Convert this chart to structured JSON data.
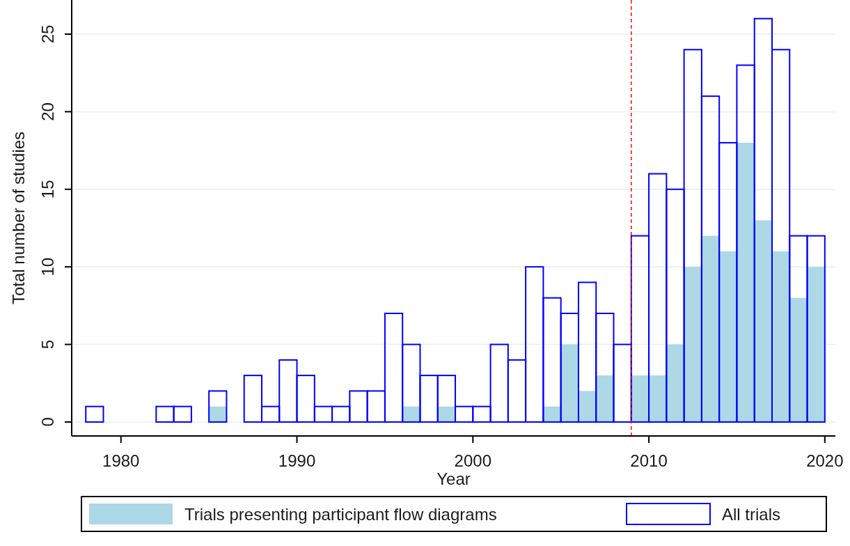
{
  "chart_data": {
    "type": "histogram",
    "xlabel": "Year",
    "ylabel": "Total number of studies",
    "bins": [
      1978,
      1979,
      1980,
      1981,
      1982,
      1983,
      1984,
      1985,
      1986,
      1987,
      1988,
      1989,
      1990,
      1991,
      1992,
      1993,
      1994,
      1995,
      1996,
      1997,
      1998,
      1999,
      2000,
      2001,
      2002,
      2003,
      2004,
      2005,
      2006,
      2007,
      2008,
      2009,
      2010,
      2011,
      2012,
      2013,
      2014,
      2015,
      2016,
      2017,
      2018,
      2019,
      2020
    ],
    "series": [
      {
        "name": "Trials presenting participant flow diagrams",
        "color": "#add8e6",
        "values": [
          0,
          0,
          0,
          0,
          0,
          0,
          0,
          1,
          0,
          0,
          0,
          0,
          0,
          0,
          0,
          0,
          0,
          0,
          1,
          0,
          1,
          0,
          0,
          0,
          0,
          0,
          1,
          5,
          2,
          3,
          0,
          3,
          3,
          5,
          10,
          12,
          11,
          18,
          13,
          11,
          8,
          10
        ]
      },
      {
        "name": "All trials",
        "color": "#0000ff",
        "values": [
          1,
          0,
          0,
          0,
          1,
          1,
          0,
          2,
          0,
          3,
          1,
          4,
          3,
          1,
          1,
          2,
          2,
          7,
          5,
          3,
          3,
          1,
          1,
          5,
          4,
          10,
          8,
          7,
          9,
          7,
          5,
          12,
          16,
          15,
          24,
          21,
          18,
          23,
          26,
          24,
          12,
          12
        ]
      }
    ],
    "xlim": [
      1977.2,
      2020.6
    ],
    "xticks": [
      1980,
      1990,
      2000,
      2010,
      2020
    ],
    "ylim": [
      -0.9,
      27.2
    ],
    "yticks": [
      0,
      5,
      10,
      15,
      20,
      25
    ],
    "grid": "y",
    "legend": "bottom",
    "ref_lines": [
      {
        "axis": "x",
        "value": 2009,
        "color": "#ff0000",
        "line_style": "dashed"
      }
    ]
  }
}
